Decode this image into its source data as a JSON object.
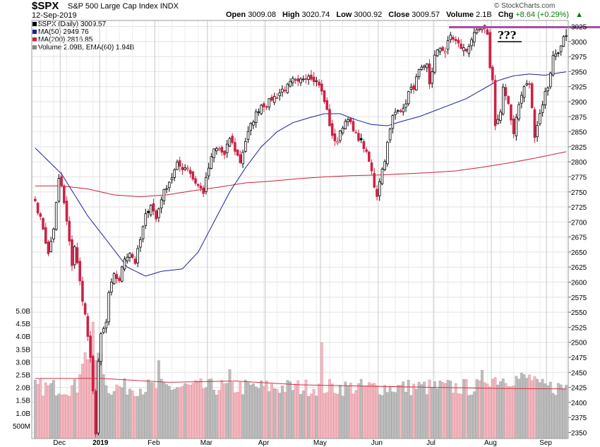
{
  "header": {
    "symbol": "$SPX",
    "description": "S&P 500 Large Cap Index",
    "exchange": "INDX",
    "date": "12-Sep-2019",
    "open_label": "Open",
    "open": "3009.08",
    "high_label": "High",
    "high": "3020.74",
    "low_label": "Low",
    "low": "3000.92",
    "close_label": "Close",
    "close": "3009.57",
    "volume_label": "Volume",
    "volume": "2.1B",
    "chg_label": "Chg",
    "chg": "+8.64 (+0.29%)",
    "chg_arrow": "▲",
    "brand": "© StockCharts.com",
    "up_color": "#0a7a0a"
  },
  "legend": [
    {
      "label": "$SPX (Daily) 3009.57",
      "color": "#000000"
    },
    {
      "label": "MA(50) 2949.76",
      "color": "#1a2299"
    },
    {
      "label": "MA(200) 2816.85",
      "color": "#cc2233"
    },
    {
      "label": "Volume 2.09B, EMA(60) 1.94B",
      "color": "#888888"
    }
  ],
  "annotation": {
    "text": "???",
    "line_level": 3025,
    "line_color": "#a64ca6"
  },
  "chart_data": {
    "type": "candlestick",
    "title": "$SPX S&P 500 Large Cap Index INDX (Daily)",
    "ylim": [
      2340,
      3035
    ],
    "price_ticks": [
      2350,
      2375,
      2400,
      2425,
      2450,
      2475,
      2500,
      2525,
      2550,
      2575,
      2600,
      2625,
      2650,
      2675,
      2700,
      2725,
      2750,
      2775,
      2800,
      2825,
      2850,
      2875,
      2900,
      2925,
      2950,
      2975,
      3000,
      3025
    ],
    "volume_ticks": [
      "500M",
      "1.0B",
      "1.5B",
      "2.0B",
      "2.5B",
      "3.0B",
      "3.5B",
      "4.0B",
      "4.5B",
      "5.0B"
    ],
    "volume_ylim_billion": [
      0,
      5.0
    ],
    "months": [
      "Dec",
      "2019",
      "Feb",
      "Mar",
      "Apr",
      "May",
      "Jun",
      "Jul",
      "Aug",
      "Sep"
    ],
    "month_bar_index": [
      10,
      25,
      46,
      66,
      88,
      109,
      131,
      152,
      174,
      195
    ],
    "up_color": "#000000",
    "down_color": "#cc2244",
    "ma_colors": {
      "ma50": "#1a2299",
      "ma200": "#cc2233"
    },
    "anchors": [
      {
        "i": 0,
        "c": 2735
      },
      {
        "i": 3,
        "c": 2690
      },
      {
        "i": 5,
        "c": 2645
      },
      {
        "i": 7,
        "c": 2690
      },
      {
        "i": 9,
        "c": 2770
      },
      {
        "i": 10,
        "c": 2760
      },
      {
        "i": 12,
        "c": 2700
      },
      {
        "i": 14,
        "c": 2630
      },
      {
        "i": 15,
        "c": 2660
      },
      {
        "i": 17,
        "c": 2600
      },
      {
        "i": 19,
        "c": 2545
      },
      {
        "i": 20,
        "c": 2510
      },
      {
        "i": 21,
        "c": 2470
      },
      {
        "i": 22,
        "c": 2416
      },
      {
        "i": 23,
        "c": 2351
      },
      {
        "i": 24,
        "c": 2468
      },
      {
        "i": 25,
        "c": 2510
      },
      {
        "i": 27,
        "c": 2532
      },
      {
        "i": 28,
        "c": 2582
      },
      {
        "i": 30,
        "c": 2610
      },
      {
        "i": 32,
        "c": 2604
      },
      {
        "i": 34,
        "c": 2640
      },
      {
        "i": 36,
        "c": 2650
      },
      {
        "i": 38,
        "c": 2633
      },
      {
        "i": 40,
        "c": 2670
      },
      {
        "i": 42,
        "c": 2710
      },
      {
        "i": 44,
        "c": 2730
      },
      {
        "i": 46,
        "c": 2705
      },
      {
        "i": 48,
        "c": 2740
      },
      {
        "i": 50,
        "c": 2760
      },
      {
        "i": 52,
        "c": 2775
      },
      {
        "i": 54,
        "c": 2795
      },
      {
        "i": 56,
        "c": 2790
      },
      {
        "i": 58,
        "c": 2792
      },
      {
        "i": 60,
        "c": 2772
      },
      {
        "i": 62,
        "c": 2760
      },
      {
        "i": 64,
        "c": 2750
      },
      {
        "i": 66,
        "c": 2790
      },
      {
        "i": 68,
        "c": 2820
      },
      {
        "i": 70,
        "c": 2822
      },
      {
        "i": 72,
        "c": 2810
      },
      {
        "i": 74,
        "c": 2840
      },
      {
        "i": 76,
        "c": 2820
      },
      {
        "i": 78,
        "c": 2800
      },
      {
        "i": 80,
        "c": 2835
      },
      {
        "i": 82,
        "c": 2860
      },
      {
        "i": 84,
        "c": 2880
      },
      {
        "i": 86,
        "c": 2895
      },
      {
        "i": 88,
        "c": 2895
      },
      {
        "i": 90,
        "c": 2905
      },
      {
        "i": 92,
        "c": 2910
      },
      {
        "i": 94,
        "c": 2920
      },
      {
        "i": 96,
        "c": 2925
      },
      {
        "i": 98,
        "c": 2935
      },
      {
        "i": 100,
        "c": 2930
      },
      {
        "i": 102,
        "c": 2940
      },
      {
        "i": 104,
        "c": 2945
      },
      {
        "i": 106,
        "c": 2938
      },
      {
        "i": 108,
        "c": 2930
      },
      {
        "i": 109,
        "c": 2915
      },
      {
        "i": 111,
        "c": 2885
      },
      {
        "i": 113,
        "c": 2840
      },
      {
        "i": 115,
        "c": 2835
      },
      {
        "i": 117,
        "c": 2860
      },
      {
        "i": 119,
        "c": 2875
      },
      {
        "i": 121,
        "c": 2850
      },
      {
        "i": 123,
        "c": 2840
      },
      {
        "i": 125,
        "c": 2825
      },
      {
        "i": 127,
        "c": 2800
      },
      {
        "i": 128,
        "c": 2783
      },
      {
        "i": 129,
        "c": 2760
      },
      {
        "i": 130,
        "c": 2745
      },
      {
        "i": 131,
        "c": 2770
      },
      {
        "i": 133,
        "c": 2805
      },
      {
        "i": 134,
        "c": 2830
      },
      {
        "i": 136,
        "c": 2875
      },
      {
        "i": 138,
        "c": 2890
      },
      {
        "i": 140,
        "c": 2885
      },
      {
        "i": 142,
        "c": 2915
      },
      {
        "i": 144,
        "c": 2925
      },
      {
        "i": 146,
        "c": 2950
      },
      {
        "i": 148,
        "c": 2955
      },
      {
        "i": 149,
        "c": 2960
      },
      {
        "i": 150,
        "c": 2930
      },
      {
        "i": 152,
        "c": 2975
      },
      {
        "i": 154,
        "c": 2990
      },
      {
        "i": 156,
        "c": 2985
      },
      {
        "i": 158,
        "c": 3010
      },
      {
        "i": 160,
        "c": 3000
      },
      {
        "i": 162,
        "c": 2990
      },
      {
        "i": 164,
        "c": 2985
      },
      {
        "i": 166,
        "c": 3005
      },
      {
        "i": 168,
        "c": 3015
      },
      {
        "i": 170,
        "c": 3020
      },
      {
        "i": 172,
        "c": 3015
      },
      {
        "i": 173,
        "c": 2955
      },
      {
        "i": 174,
        "c": 2940
      },
      {
        "i": 175,
        "c": 2860
      },
      {
        "i": 177,
        "c": 2880
      },
      {
        "i": 178,
        "c": 2920
      },
      {
        "i": 180,
        "c": 2900
      },
      {
        "i": 181,
        "c": 2870
      },
      {
        "i": 182,
        "c": 2850
      },
      {
        "i": 184,
        "c": 2895
      },
      {
        "i": 186,
        "c": 2925
      },
      {
        "i": 188,
        "c": 2930
      },
      {
        "i": 190,
        "c": 2845
      },
      {
        "i": 192,
        "c": 2880
      },
      {
        "i": 194,
        "c": 2915
      },
      {
        "i": 195,
        "c": 2925
      },
      {
        "i": 197,
        "c": 2975
      },
      {
        "i": 199,
        "c": 2985
      },
      {
        "i": 200,
        "c": 2990
      },
      {
        "i": 201,
        "c": 3005
      },
      {
        "i": 202,
        "c": 3009.57
      }
    ],
    "ma50_anchors": [
      {
        "i": 0,
        "c": 2823
      },
      {
        "i": 10,
        "c": 2780
      },
      {
        "i": 20,
        "c": 2710
      },
      {
        "i": 28,
        "c": 2665
      },
      {
        "i": 35,
        "c": 2625
      },
      {
        "i": 42,
        "c": 2610
      },
      {
        "i": 48,
        "c": 2618
      },
      {
        "i": 56,
        "c": 2622
      },
      {
        "i": 62,
        "c": 2650
      },
      {
        "i": 68,
        "c": 2700
      },
      {
        "i": 74,
        "c": 2750
      },
      {
        "i": 80,
        "c": 2790
      },
      {
        "i": 86,
        "c": 2825
      },
      {
        "i": 92,
        "c": 2850
      },
      {
        "i": 98,
        "c": 2865
      },
      {
        "i": 104,
        "c": 2873
      },
      {
        "i": 110,
        "c": 2880
      },
      {
        "i": 116,
        "c": 2880
      },
      {
        "i": 122,
        "c": 2870
      },
      {
        "i": 128,
        "c": 2862
      },
      {
        "i": 134,
        "c": 2860
      },
      {
        "i": 140,
        "c": 2868
      },
      {
        "i": 146,
        "c": 2875
      },
      {
        "i": 152,
        "c": 2885
      },
      {
        "i": 158,
        "c": 2895
      },
      {
        "i": 164,
        "c": 2905
      },
      {
        "i": 170,
        "c": 2920
      },
      {
        "i": 176,
        "c": 2935
      },
      {
        "i": 182,
        "c": 2943
      },
      {
        "i": 188,
        "c": 2946
      },
      {
        "i": 194,
        "c": 2944
      },
      {
        "i": 198,
        "c": 2947
      },
      {
        "i": 202,
        "c": 2949.76
      }
    ],
    "ma200_anchors": [
      {
        "i": 0,
        "c": 2760
      },
      {
        "i": 10,
        "c": 2760
      },
      {
        "i": 20,
        "c": 2755
      },
      {
        "i": 30,
        "c": 2745
      },
      {
        "i": 40,
        "c": 2742
      },
      {
        "i": 50,
        "c": 2745
      },
      {
        "i": 60,
        "c": 2752
      },
      {
        "i": 70,
        "c": 2758
      },
      {
        "i": 80,
        "c": 2765
      },
      {
        "i": 90,
        "c": 2768
      },
      {
        "i": 100,
        "c": 2772
      },
      {
        "i": 110,
        "c": 2775
      },
      {
        "i": 120,
        "c": 2777
      },
      {
        "i": 130,
        "c": 2778
      },
      {
        "i": 140,
        "c": 2780
      },
      {
        "i": 150,
        "c": 2782
      },
      {
        "i": 160,
        "c": 2785
      },
      {
        "i": 170,
        "c": 2791
      },
      {
        "i": 180,
        "c": 2798
      },
      {
        "i": 190,
        "c": 2806
      },
      {
        "i": 202,
        "c": 2816.85
      }
    ],
    "volume_ema_billion": [
      2.35,
      2.35,
      2.2,
      2.25,
      2.1,
      2.05,
      2.0,
      1.96,
      1.94
    ],
    "volume_last_billion": 2.09
  }
}
